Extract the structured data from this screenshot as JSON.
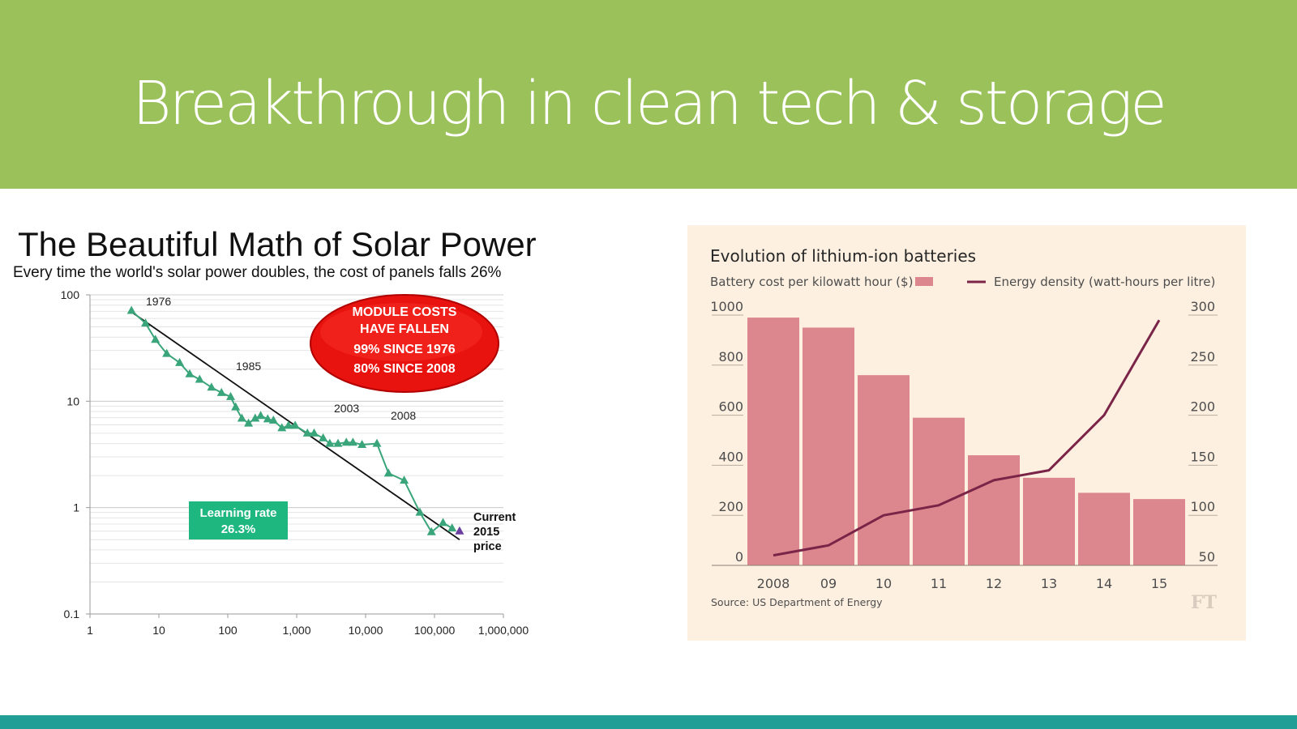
{
  "slide": {
    "title": "Breakthrough in clean tech & storage",
    "header_color": "#9bc15b",
    "footer_color": "#219e95"
  },
  "chart_data": [
    {
      "type": "scatter",
      "title": "The Beautiful Math of Solar Power",
      "subtitle": "Every time the world's solar power doubles, the cost of panels falls 26%",
      "x_scale": "log",
      "y_scale": "log",
      "xlim": [
        1,
        1000000
      ],
      "ylim": [
        0.1,
        100
      ],
      "x_ticks": [
        "1",
        "10",
        "100",
        "1,000",
        "10,000",
        "100,000",
        "1,000,000"
      ],
      "x_tick_values": [
        1,
        10,
        100,
        1000,
        10000,
        100000,
        1000000
      ],
      "y_ticks": [
        "0.1",
        "1",
        "10",
        "100"
      ],
      "y_tick_values": [
        0.1,
        1,
        10,
        100
      ],
      "grid": true,
      "series": [
        {
          "name": "module cost",
          "color": "#3aa57a",
          "marker": "triangle",
          "x": [
            4,
            6.4,
            8.9,
            13,
            20,
            28,
            39,
            58,
            81,
            110,
            130,
            160,
            200,
            250,
            300,
            380,
            460,
            610,
            760,
            950,
            1430,
            1790,
            2420,
            3020,
            3980,
            5250,
            6550,
            8870,
            14600,
            21500,
            36300,
            61400,
            90400,
            133000,
            180000
          ],
          "y": [
            71,
            54,
            38,
            28,
            23,
            18,
            16,
            13.5,
            12,
            11,
            8.8,
            6.9,
            6.2,
            6.9,
            7.3,
            6.8,
            6.6,
            5.6,
            5.9,
            5.9,
            5.0,
            5.0,
            4.5,
            4.0,
            4.0,
            4.1,
            4.1,
            3.9,
            4.0,
            2.1,
            1.8,
            0.9,
            0.59,
            0.72,
            0.64
          ]
        },
        {
          "name": "current 2015 price",
          "color": "#6a3fa0",
          "marker": "triangle",
          "x": [
            231000
          ],
          "y": [
            0.6
          ]
        },
        {
          "name": "learning curve trend",
          "color": "#111111",
          "type": "line",
          "x": [
            4,
            231000
          ],
          "y": [
            69,
            0.5
          ]
        }
      ],
      "annotations": {
        "year_labels": [
          "1976",
          "1985",
          "2003",
          "2008"
        ],
        "callout_lines": [
          "MODULE COSTS",
          "HAVE FALLEN",
          "99% SINCE 1976",
          "80% SINCE 2008"
        ],
        "callout_color": "#e8120e",
        "learning_rate_lines": [
          "Learning rate",
          "26.3%"
        ],
        "learning_rate_color": "#1fb780",
        "current_label_lines": [
          "Current",
          "2015",
          "price"
        ]
      }
    },
    {
      "type": "bar",
      "title": "Evolution of lithium-ion batteries",
      "categories": [
        "2008",
        "09",
        "10",
        "11",
        "12",
        "13",
        "14",
        "15"
      ],
      "series": [
        {
          "name": "Battery cost per kilowatt hour ($)",
          "type": "bar",
          "axis": "left",
          "color": "#dc878d",
          "values": [
            990,
            950,
            760,
            590,
            440,
            350,
            290,
            265
          ]
        },
        {
          "name": "Energy density (watt-hours per litre)",
          "type": "line",
          "axis": "right",
          "color": "#7a2448",
          "values": [
            60,
            70,
            100,
            110,
            135,
            145,
            200,
            295
          ]
        }
      ],
      "ylim_left": [
        0,
        1000
      ],
      "ylim_right": [
        50,
        300
      ],
      "y_ticks_left": [
        "0",
        "200",
        "400",
        "600",
        "800",
        "1000"
      ],
      "y_tick_values_left": [
        0,
        200,
        400,
        600,
        800,
        1000
      ],
      "y_ticks_right": [
        "50",
        "100",
        "150",
        "200",
        "250",
        "300"
      ],
      "y_tick_values_right": [
        50,
        100,
        150,
        200,
        250,
        300
      ],
      "legend": "top",
      "source": "Source: US Department of Energy",
      "logo": "FT",
      "background": "#fdf0e1"
    }
  ]
}
